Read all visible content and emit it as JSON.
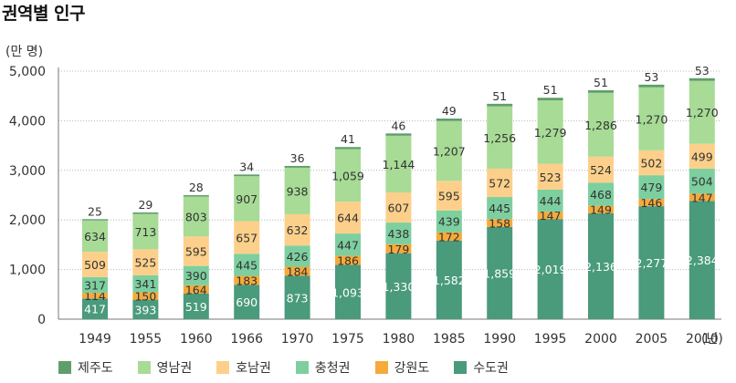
{
  "chart_data": {
    "type": "bar",
    "stacked": true,
    "title": "권역별 인구",
    "ylabel": "(만 명)",
    "x_unit": "(년)",
    "ylim": [
      0,
      5000
    ],
    "yticks": [
      0,
      1000,
      2000,
      3000,
      4000,
      5000
    ],
    "ytick_labels": [
      "0",
      "1,000",
      "2,000",
      "3,000",
      "4,000",
      "5,000"
    ],
    "categories": [
      "1949",
      "1955",
      "1960",
      "1966",
      "1970",
      "1975",
      "1980",
      "1985",
      "1990",
      "1995",
      "2000",
      "2005",
      "2010"
    ],
    "series": [
      {
        "name": "수도권",
        "color": "#4a9a7c",
        "label_color": "#ffffff",
        "values": [
          417,
          393,
          519,
          690,
          873,
          1093,
          1330,
          1582,
          1859,
          2019,
          2136,
          2277,
          2384
        ],
        "labels": [
          "417",
          "393",
          "519",
          "690",
          "873",
          "1,093",
          "1,330",
          "1,582",
          "1,859",
          "2,019",
          "2,136",
          "2,277",
          "2,384"
        ]
      },
      {
        "name": "강원도",
        "color": "#f5aa3c",
        "label_color": "#333333",
        "values": [
          114,
          150,
          164,
          183,
          184,
          186,
          179,
          172,
          158,
          147,
          149,
          146,
          147
        ],
        "labels": [
          "114",
          "150",
          "164",
          "183",
          "184",
          "186",
          "179",
          "172",
          "158",
          "147",
          "149",
          "146",
          "147"
        ]
      },
      {
        "name": "충청권",
        "color": "#7dcf9f",
        "label_color": "#333333",
        "values": [
          317,
          341,
          390,
          445,
          426,
          447,
          438,
          439,
          445,
          444,
          468,
          479,
          504
        ],
        "labels": [
          "317",
          "341",
          "390",
          "445",
          "426",
          "447",
          "438",
          "439",
          "445",
          "444",
          "468",
          "479",
          "504"
        ]
      },
      {
        "name": "호남권",
        "color": "#fcd08a",
        "label_color": "#333333",
        "values": [
          509,
          525,
          595,
          657,
          632,
          644,
          607,
          595,
          572,
          523,
          524,
          502,
          499
        ],
        "labels": [
          "509",
          "525",
          "595",
          "657",
          "632",
          "644",
          "607",
          "595",
          "572",
          "523",
          "524",
          "502",
          "499"
        ]
      },
      {
        "name": "영남권",
        "color": "#a7db96",
        "label_color": "#333333",
        "values": [
          634,
          713,
          803,
          907,
          938,
          1059,
          1144,
          1207,
          1256,
          1279,
          1286,
          1270,
          1270
        ],
        "labels": [
          "634",
          "713",
          "803",
          "907",
          "938",
          "1,059",
          "1,144",
          "1,207",
          "1,256",
          "1,279",
          "1,286",
          "1,270",
          "1,270"
        ]
      },
      {
        "name": "제주도",
        "color": "#5f9e6b",
        "label_color": "#333333",
        "values": [
          25,
          29,
          28,
          34,
          36,
          41,
          46,
          49,
          51,
          51,
          51,
          53,
          53
        ],
        "labels": [
          "25",
          "29",
          "28",
          "34",
          "36",
          "41",
          "46",
          "49",
          "51",
          "51",
          "51",
          "53",
          "53"
        ]
      }
    ],
    "legend_order": [
      "제주도",
      "영남권",
      "호남권",
      "충청권",
      "강원도",
      "수도권"
    ],
    "legend_position": "bottom",
    "grid": "horizontal dotted"
  }
}
